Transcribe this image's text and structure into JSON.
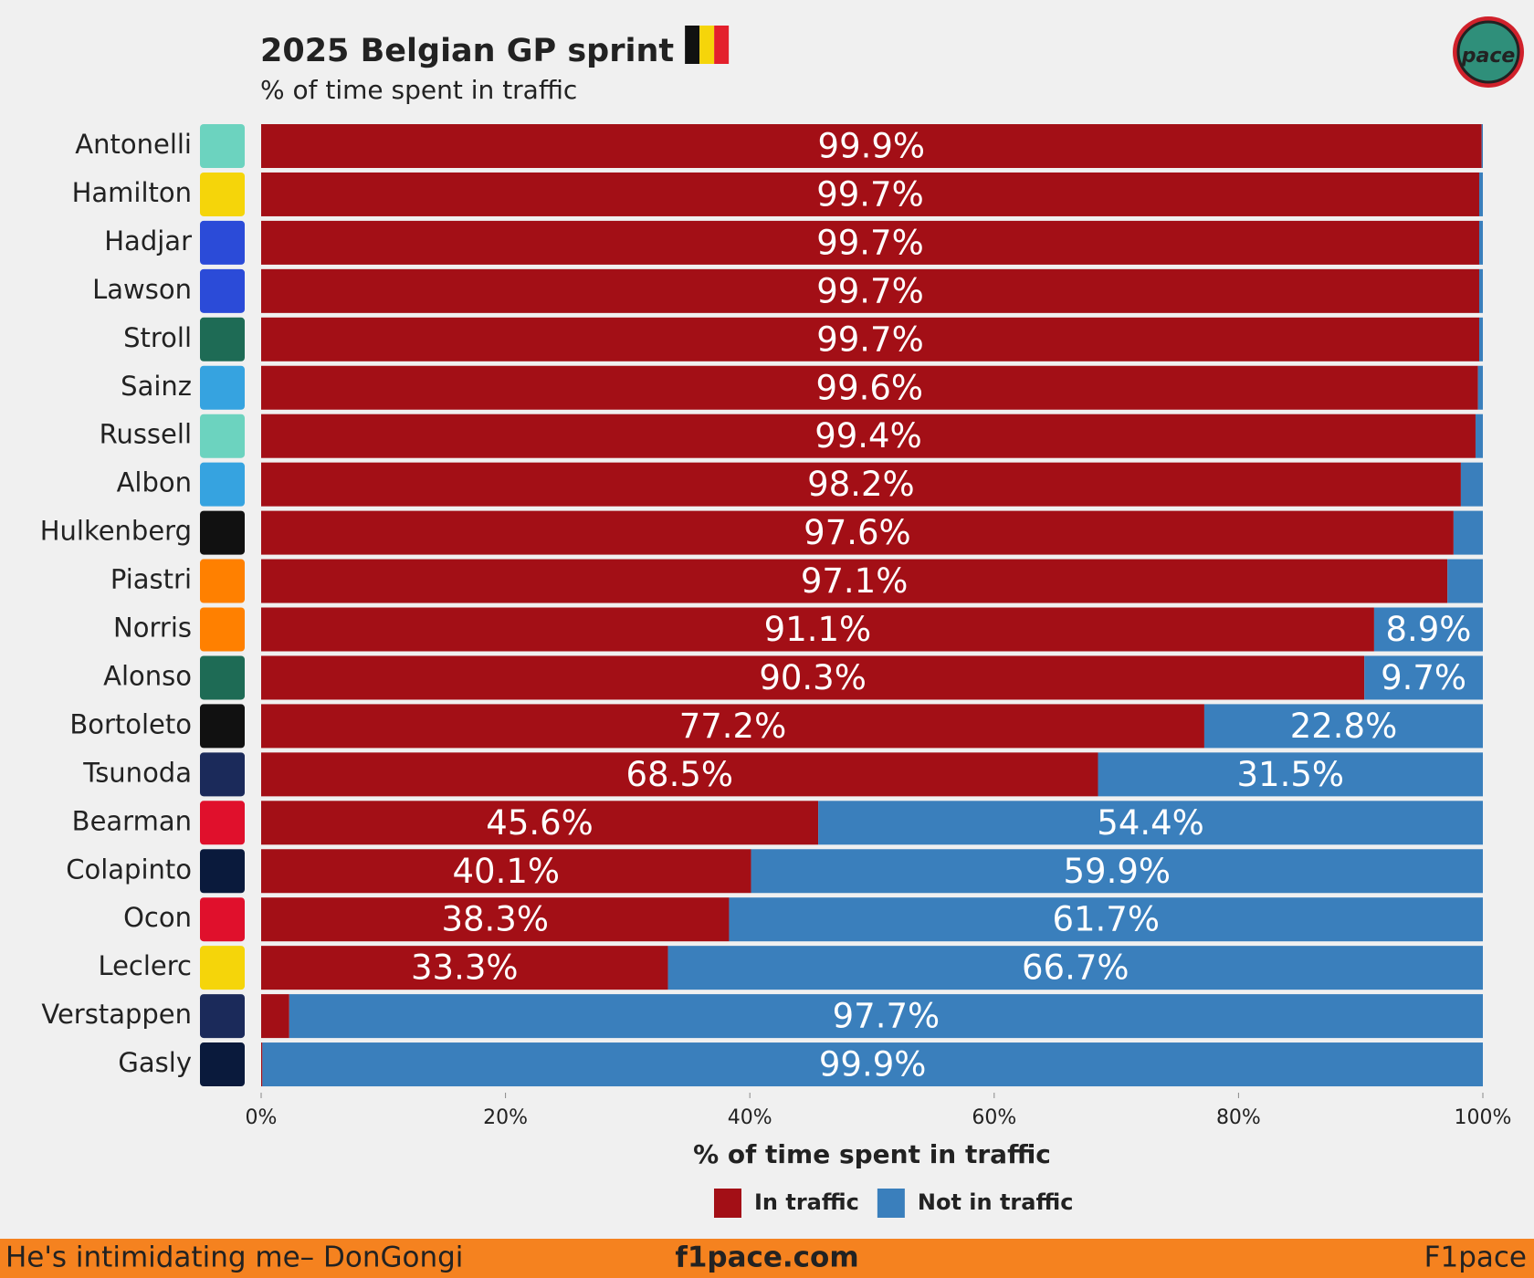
{
  "chart_data": {
    "type": "stacked_bar_horizontal",
    "title": "2025 Belgian GP sprint",
    "subtitle": "% of time spent in traffic",
    "x_label": "% of time spent in traffic",
    "categories": [
      "Antonelli",
      "Hamilton",
      "Hadjar",
      "Lawson",
      "Stroll",
      "Sainz",
      "Russell",
      "Albon",
      "Hulkenberg",
      "Piastri",
      "Norris",
      "Alonso",
      "Bortoleto",
      "Tsunoda",
      "Bearman",
      "Colapinto",
      "Ocon",
      "Leclerc",
      "Verstappen",
      "Gasly"
    ],
    "series": [
      {
        "name": "In traffic",
        "color": "#a30f16",
        "values": [
          99.9,
          99.7,
          99.7,
          99.7,
          99.7,
          99.6,
          99.4,
          98.2,
          97.6,
          97.1,
          91.1,
          90.3,
          77.2,
          68.5,
          45.6,
          40.1,
          38.3,
          33.3,
          2.3,
          0.1
        ],
        "value_labels": [
          "99.9%",
          "99.7%",
          "99.7%",
          "99.7%",
          "99.7%",
          "99.6%",
          "99.4%",
          "98.2%",
          "97.6%",
          "97.1%",
          "91.1%",
          "90.3%",
          "77.2%",
          "68.5%",
          "45.6%",
          "40.1%",
          "38.3%",
          "33.3%",
          null,
          null
        ]
      },
      {
        "name": "Not in traffic",
        "color": "#3a7fbc",
        "values": [
          0.1,
          0.3,
          0.3,
          0.3,
          0.3,
          0.4,
          0.6,
          1.8,
          2.4,
          2.9,
          8.9,
          9.7,
          22.8,
          31.5,
          54.4,
          59.9,
          61.7,
          66.7,
          97.7,
          99.9
        ],
        "value_labels": [
          null,
          null,
          null,
          null,
          null,
          null,
          null,
          null,
          null,
          null,
          "8.9%",
          "9.7%",
          "22.8%",
          "31.5%",
          "54.4%",
          "59.9%",
          "61.7%",
          "66.7%",
          "97.7%",
          "99.9%"
        ]
      }
    ],
    "xlim": [
      0,
      100
    ],
    "xticks": [
      {
        "value": 0,
        "label": "0%"
      },
      {
        "value": 20,
        "label": "20%"
      },
      {
        "value": 40,
        "label": "40%"
      },
      {
        "value": 60,
        "label": "60%"
      },
      {
        "value": 80,
        "label": "80%"
      },
      {
        "value": 100,
        "label": "100%"
      }
    ],
    "legend": "bottom",
    "brand_logo": "pace",
    "footer": {
      "left": "He's intimidating me– DonGongi",
      "center": "f1pace.com",
      "right": "F1pace"
    }
  }
}
